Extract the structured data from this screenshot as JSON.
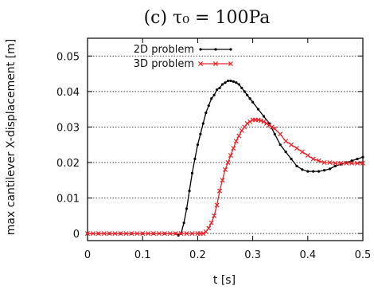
{
  "chart_data": {
    "type": "line",
    "title": "(c) τ₀ = 100Pa",
    "xlabel": "t [s]",
    "ylabel": "max cantilever X-displacement [m]",
    "xlim": [
      0,
      0.5
    ],
    "ylim": [
      -0.002,
      0.055
    ],
    "xticks": [
      0,
      0.1,
      0.2,
      0.3,
      0.4,
      0.5
    ],
    "xtick_labels": [
      "0",
      "0.1",
      "0.2",
      "0.3",
      "0.4",
      "0.5"
    ],
    "yticks": [
      0,
      0.01,
      0.02,
      0.03,
      0.04,
      0.05
    ],
    "ytick_labels": [
      "0",
      "0.01",
      "0.02",
      "0.03",
      "0.04",
      "0.05"
    ],
    "grid": "horizontal-dotted",
    "legend_position": "top-left",
    "series": [
      {
        "name": "2D problem",
        "color": "#000000",
        "marker": "dot",
        "x": [
          0,
          0.02,
          0.04,
          0.06,
          0.08,
          0.1,
          0.12,
          0.14,
          0.16,
          0.165,
          0.17,
          0.175,
          0.18,
          0.185,
          0.19,
          0.195,
          0.2,
          0.205,
          0.21,
          0.215,
          0.22,
          0.225,
          0.23,
          0.235,
          0.24,
          0.245,
          0.25,
          0.255,
          0.26,
          0.265,
          0.27,
          0.275,
          0.28,
          0.285,
          0.29,
          0.295,
          0.3,
          0.31,
          0.32,
          0.33,
          0.34,
          0.35,
          0.36,
          0.37,
          0.38,
          0.39,
          0.4,
          0.41,
          0.42,
          0.43,
          0.44,
          0.45,
          0.46,
          0.47,
          0.48,
          0.49,
          0.5
        ],
        "values": [
          0,
          0,
          0,
          0,
          0,
          0,
          0,
          0,
          0,
          -0.0005,
          0,
          0.003,
          0.007,
          0.012,
          0.017,
          0.021,
          0.025,
          0.028,
          0.031,
          0.034,
          0.036,
          0.038,
          0.039,
          0.0405,
          0.041,
          0.042,
          0.0425,
          0.043,
          0.043,
          0.0428,
          0.0425,
          0.042,
          0.041,
          0.04,
          0.039,
          0.038,
          0.037,
          0.035,
          0.033,
          0.031,
          0.028,
          0.025,
          0.023,
          0.021,
          0.019,
          0.018,
          0.0175,
          0.0175,
          0.0175,
          0.0178,
          0.0182,
          0.019,
          0.0195,
          0.02,
          0.0205,
          0.021,
          0.0215
        ]
      },
      {
        "name": "3D problem",
        "color": "#e8262b",
        "marker": "x",
        "x": [
          0,
          0.01,
          0.02,
          0.03,
          0.04,
          0.05,
          0.06,
          0.07,
          0.08,
          0.09,
          0.1,
          0.11,
          0.12,
          0.13,
          0.14,
          0.15,
          0.16,
          0.17,
          0.18,
          0.19,
          0.2,
          0.205,
          0.21,
          0.215,
          0.22,
          0.225,
          0.23,
          0.235,
          0.24,
          0.245,
          0.25,
          0.255,
          0.26,
          0.265,
          0.27,
          0.275,
          0.28,
          0.285,
          0.29,
          0.295,
          0.3,
          0.305,
          0.31,
          0.315,
          0.32,
          0.325,
          0.33,
          0.335,
          0.34,
          0.35,
          0.36,
          0.37,
          0.38,
          0.39,
          0.4,
          0.41,
          0.42,
          0.43,
          0.44,
          0.45,
          0.46,
          0.47,
          0.48,
          0.49,
          0.5
        ],
        "values": [
          0,
          0,
          0,
          0,
          0,
          0,
          0,
          0,
          0,
          0,
          0,
          0,
          0,
          0,
          0,
          0,
          0,
          0,
          0,
          0,
          0,
          0,
          0,
          0.0005,
          0.0015,
          0.003,
          0.005,
          0.008,
          0.012,
          0.015,
          0.018,
          0.02,
          0.022,
          0.024,
          0.026,
          0.0275,
          0.029,
          0.03,
          0.031,
          0.0315,
          0.032,
          0.032,
          0.032,
          0.0318,
          0.0315,
          0.031,
          0.0305,
          0.03,
          0.0295,
          0.028,
          0.026,
          0.025,
          0.024,
          0.023,
          0.022,
          0.021,
          0.0205,
          0.02,
          0.02,
          0.0198,
          0.0198,
          0.0198,
          0.0198,
          0.0198,
          0.0198
        ]
      }
    ]
  }
}
